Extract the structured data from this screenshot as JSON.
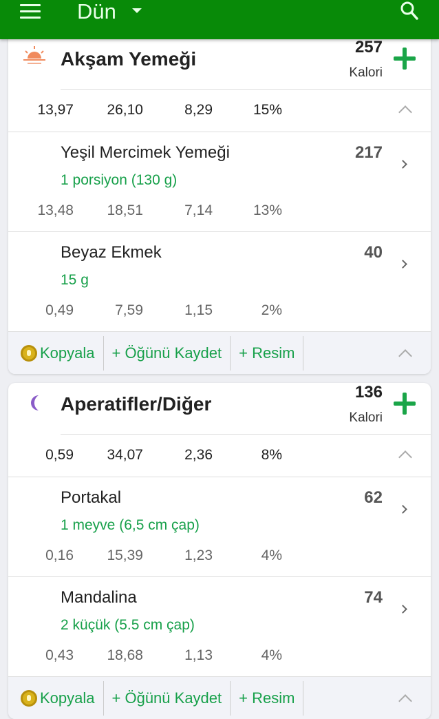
{
  "appbar": {
    "title": "Dün",
    "icons": [
      "menu-icon",
      "dropdown-caret-icon",
      "search-icon"
    ]
  },
  "colors": {
    "appbar": "#088a08",
    "accent": "#17a04a",
    "coin": "#d9b21c",
    "moon": "#8a5cc8",
    "sun": "#f08a5d"
  },
  "meals": [
    {
      "name": "Akşam Yemeği",
      "icon": "sunset-icon",
      "calories": "257",
      "cal_label": "Kalori",
      "totals": [
        "13,97",
        "26,10",
        "8,29",
        "15%"
      ],
      "items": [
        {
          "name": "Yeşil Mercimek Yemeği",
          "portion": "1 porsiyon (130 g)",
          "calories": "217",
          "nums": [
            "13,48",
            "18,51",
            "7,14",
            "13%"
          ]
        },
        {
          "name": "Beyaz Ekmek",
          "portion": "15 g",
          "calories": "40",
          "nums": [
            "0,49",
            "7,59",
            "1,15",
            "2%"
          ]
        }
      ],
      "footer": {
        "copy": "Kopyala",
        "save": "+ Öğünü Kaydet",
        "photo": "+ Resim"
      }
    },
    {
      "name": "Aperatifler/Diğer",
      "icon": "moon-icon",
      "calories": "136",
      "cal_label": "Kalori",
      "totals": [
        "0,59",
        "34,07",
        "2,36",
        "8%"
      ],
      "items": [
        {
          "name": "Portakal",
          "portion": "1 meyve (6,5 cm çap)",
          "calories": "62",
          "nums": [
            "0,16",
            "15,39",
            "1,23",
            "4%"
          ]
        },
        {
          "name": "Mandalina",
          "portion": "2 küçük (5.5 cm çap)",
          "calories": "74",
          "nums": [
            "0,43",
            "18,68",
            "1,13",
            "4%"
          ]
        }
      ],
      "footer": {
        "copy": "Kopyala",
        "save": "+ Öğünü Kaydet",
        "photo": "+ Resim"
      }
    }
  ]
}
